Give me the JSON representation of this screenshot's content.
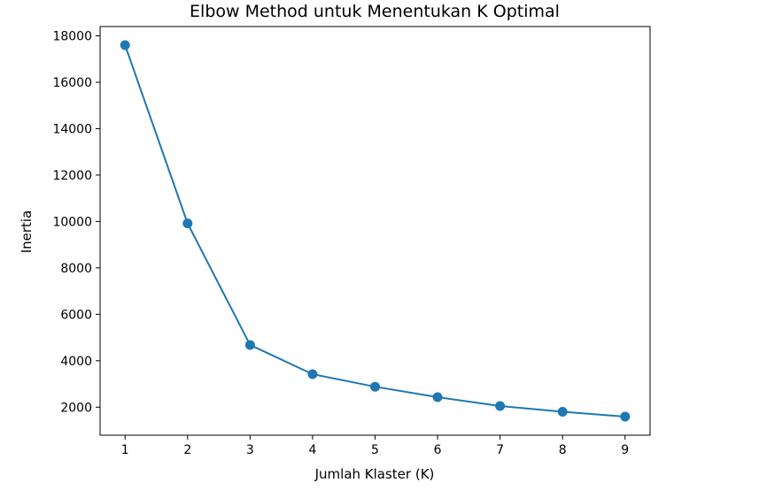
{
  "chart_data": {
    "type": "line",
    "title": "Elbow Method untuk Menentukan K Optimal",
    "xlabel": "Jumlah Klaster (K)",
    "ylabel": "Inertia",
    "x": [
      1,
      2,
      3,
      4,
      5,
      6,
      7,
      8,
      9
    ],
    "series": [
      {
        "values": [
          17600,
          9920,
          4680,
          3420,
          2880,
          2430,
          2050,
          1800,
          1590
        ],
        "color": "#1f77b4",
        "marker": "circle"
      }
    ],
    "x_ticks": [
      1,
      2,
      3,
      4,
      5,
      6,
      7,
      8,
      9
    ],
    "y_ticks": [
      2000,
      4000,
      6000,
      8000,
      10000,
      12000,
      14000,
      16000,
      18000
    ],
    "xlim": [
      0.6,
      9.4
    ],
    "ylim": [
      791,
      18400
    ],
    "grid": false,
    "legend": false
  }
}
